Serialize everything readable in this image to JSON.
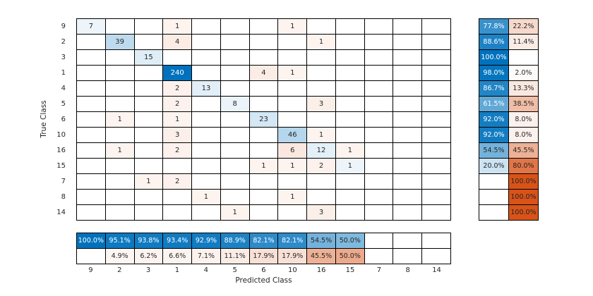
{
  "chart_data": {
    "type": "heatmap",
    "variant": "confusion-matrix",
    "title": "",
    "xlabel": "Predicted Class",
    "ylabel": "True Class",
    "classes": [
      "9",
      "2",
      "3",
      "1",
      "4",
      "5",
      "6",
      "10",
      "16",
      "15",
      "7",
      "8",
      "14"
    ],
    "matrix": [
      [
        7,
        0,
        0,
        1,
        0,
        0,
        0,
        1,
        0,
        0,
        0,
        0,
        0
      ],
      [
        0,
        39,
        0,
        4,
        0,
        0,
        0,
        0,
        1,
        0,
        0,
        0,
        0
      ],
      [
        0,
        0,
        15,
        0,
        0,
        0,
        0,
        0,
        0,
        0,
        0,
        0,
        0
      ],
      [
        0,
        0,
        0,
        240,
        0,
        0,
        4,
        1,
        0,
        0,
        0,
        0,
        0
      ],
      [
        0,
        0,
        0,
        2,
        13,
        0,
        0,
        0,
        0,
        0,
        0,
        0,
        0
      ],
      [
        0,
        0,
        0,
        2,
        0,
        8,
        0,
        0,
        3,
        0,
        0,
        0,
        0
      ],
      [
        0,
        1,
        0,
        1,
        0,
        0,
        23,
        0,
        0,
        0,
        0,
        0,
        0
      ],
      [
        0,
        0,
        0,
        3,
        0,
        0,
        0,
        46,
        1,
        0,
        0,
        0,
        0
      ],
      [
        0,
        1,
        0,
        2,
        0,
        0,
        0,
        6,
        12,
        1,
        0,
        0,
        0
      ],
      [
        0,
        0,
        0,
        0,
        0,
        0,
        1,
        1,
        2,
        1,
        0,
        0,
        0
      ],
      [
        0,
        0,
        1,
        2,
        0,
        0,
        0,
        0,
        0,
        0,
        0,
        0,
        0
      ],
      [
        0,
        0,
        0,
        0,
        1,
        0,
        0,
        1,
        0,
        0,
        0,
        0,
        0
      ],
      [
        0,
        0,
        0,
        0,
        0,
        1,
        0,
        0,
        3,
        0,
        0,
        0,
        0
      ]
    ],
    "row_summary": {
      "correct_pct": [
        77.8,
        88.6,
        100.0,
        98.0,
        86.7,
        61.5,
        92.0,
        92.0,
        54.5,
        20.0,
        null,
        null,
        null
      ],
      "incorrect_pct": [
        22.2,
        11.4,
        null,
        2.0,
        13.3,
        38.5,
        8.0,
        8.0,
        45.5,
        80.0,
        100.0,
        100.0,
        100.0
      ]
    },
    "column_summary": {
      "correct_pct": [
        100.0,
        95.1,
        93.8,
        93.4,
        92.9,
        88.9,
        82.1,
        82.1,
        54.5,
        50.0,
        null,
        null,
        null
      ],
      "incorrect_pct": [
        null,
        4.9,
        6.2,
        6.6,
        7.1,
        11.1,
        17.9,
        17.9,
        45.5,
        50.0,
        null,
        null,
        null
      ]
    },
    "colors": {
      "diagonal_base": "#0072BD",
      "off_diagonal_base": "#D95319",
      "grid_line": "#000000",
      "text": "#262626",
      "text_on_dark": "#FFFFFF",
      "background": "#FFFFFF"
    },
    "grid": true,
    "legend_position": "none"
  }
}
